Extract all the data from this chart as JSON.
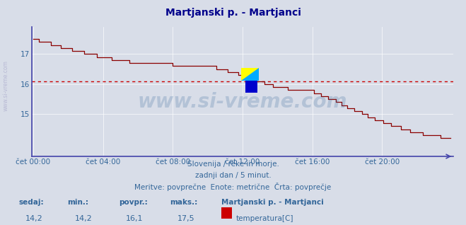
{
  "title": "Martjanski p. - Martjanci",
  "title_color": "#00008b",
  "background_color": "#d8dde8",
  "line_color": "#8b0000",
  "avg_line_color": "#cc0000",
  "avg_value": 16.1,
  "y_min": 13.6,
  "y_max": 17.9,
  "yticks": [
    15,
    16,
    17
  ],
  "x_labels": [
    "čet 00:00",
    "čet 04:00",
    "čet 08:00",
    "čet 12:00",
    "čet 16:00",
    "čet 20:00"
  ],
  "x_tick_positions": [
    0,
    48,
    96,
    144,
    192,
    240
  ],
  "total_points": 288,
  "subtitle_line1": "Slovenija / reke in morje.",
  "subtitle_line2": "zadnji dan / 5 minut.",
  "subtitle_line3": "Meritve: povprečne  Enote: metrične  Črta: povprečje",
  "footer_labels": [
    "sedaj:",
    "min.:",
    "povpr.:",
    "maks.:"
  ],
  "footer_values": [
    "14,2",
    "14,2",
    "16,1",
    "17,5"
  ],
  "footer_series_label": "Martjanski p. - Martjanci",
  "footer_series_unit": "temperatura[C]",
  "footer_series_color": "#cc0000",
  "grid_color": "#ffffff",
  "axis_color": "#4444aa",
  "text_color": "#336699",
  "watermark": "www.si-vreme.com",
  "watermark_color": "#336699",
  "side_watermark": "www.si-vreme.com",
  "side_watermark_color": "#aaaacc"
}
